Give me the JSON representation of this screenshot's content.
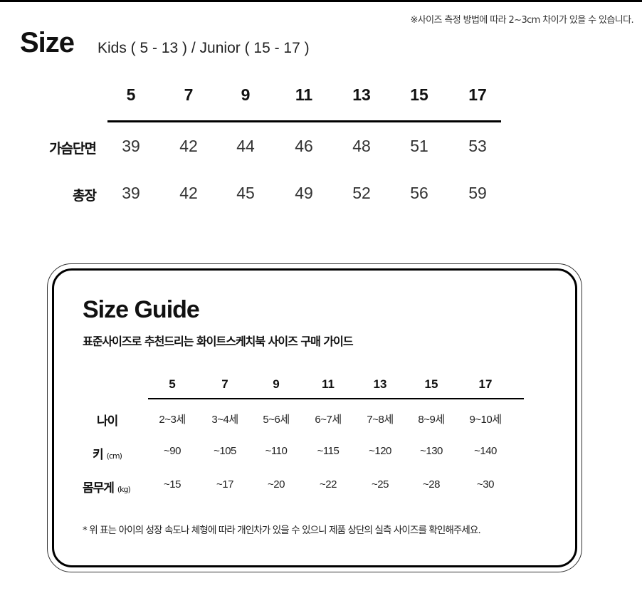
{
  "notice": "※사이즈 측정 방법에 따라 2~3cm 차이가 있을 수 있습니다.",
  "size_chart": {
    "title": "Size",
    "subtitle": "Kids ( 5 - 13 ) / Junior ( 15 - 17 )",
    "columns": [
      "5",
      "7",
      "9",
      "11",
      "13",
      "15",
      "17"
    ],
    "rows": [
      {
        "label": "가슴단면",
        "values": [
          "39",
          "42",
          "44",
          "46",
          "48",
          "51",
          "53"
        ]
      },
      {
        "label": "총장",
        "values": [
          "39",
          "42",
          "45",
          "49",
          "52",
          "56",
          "59"
        ]
      }
    ]
  },
  "guide": {
    "title": "Size Guide",
    "subtitle": "표준사이즈로 추천드리는 화이트스케치북 사이즈 구매 가이드",
    "columns": [
      "5",
      "7",
      "9",
      "11",
      "13",
      "15",
      "17"
    ],
    "rows": [
      {
        "label": "나이",
        "unit": "",
        "values": [
          "2~3세",
          "3~4세",
          "5~6세",
          "6~7세",
          "7~8세",
          "8~9세",
          "9~10세"
        ]
      },
      {
        "label": "키",
        "unit": "(cm)",
        "values": [
          "~90",
          "~105",
          "~110",
          "~115",
          "~120",
          "~130",
          "~140"
        ]
      },
      {
        "label": "몸무게",
        "unit": "(kg)",
        "values": [
          "~15",
          "~17",
          "~20",
          "~22",
          "~25",
          "~28",
          "~30"
        ]
      }
    ],
    "note": "* 위 표는 아이의 성장 속도나 체형에 따라 개인차가 있을 수 있으니 제품 상단의 실측 사이즈를 확인해주세요."
  }
}
